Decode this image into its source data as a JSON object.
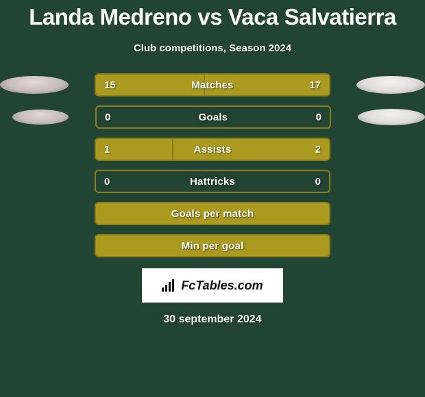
{
  "title": "Landa Medreno vs Vaca Salvatierra",
  "subtitle": "Club competitions, Season 2024",
  "date": "30 september 2024",
  "logo": {
    "text": "FcTables.com"
  },
  "colors": {
    "background": "#214433",
    "accent": "#aa9a20",
    "accent_border": "#8c7e1a",
    "ellipse_left": "#c7bcbc",
    "ellipse_right": "#dedcdb",
    "ellipse_shadow": "#7a7672",
    "text": "#ffffff"
  },
  "ellipse_left_gradient": "radial-gradient(ellipse at 50% 35%, #e1d8d8 0%, #c7bcbc 55%, #8a8181 100%)",
  "ellipse_right_gradient": "radial-gradient(ellipse at 50% 35%, #f3f2f1 0%, #dedcdb 55%, #9a9794 100%)",
  "stats": [
    {
      "label": "Matches",
      "left_val": "15",
      "right_val": "17",
      "left_pct": 46.9,
      "right_pct": 53.1,
      "show_vals": true,
      "show_ellipses": true
    },
    {
      "label": "Goals",
      "left_val": "0",
      "right_val": "0",
      "left_pct": 0,
      "right_pct": 0,
      "show_vals": true,
      "show_ellipses": true
    },
    {
      "label": "Assists",
      "left_val": "1",
      "right_val": "2",
      "left_pct": 33.3,
      "right_pct": 66.7,
      "show_vals": true,
      "show_ellipses": false
    },
    {
      "label": "Hattricks",
      "left_val": "0",
      "right_val": "0",
      "left_pct": 0,
      "right_pct": 0,
      "show_vals": true,
      "show_ellipses": false
    },
    {
      "label": "Goals per match",
      "left_val": "",
      "right_val": "",
      "left_pct": 100,
      "right_pct": 0,
      "show_vals": false,
      "show_ellipses": false
    },
    {
      "label": "Min per goal",
      "left_val": "",
      "right_val": "",
      "left_pct": 100,
      "right_pct": 0,
      "show_vals": false,
      "show_ellipses": false
    }
  ]
}
